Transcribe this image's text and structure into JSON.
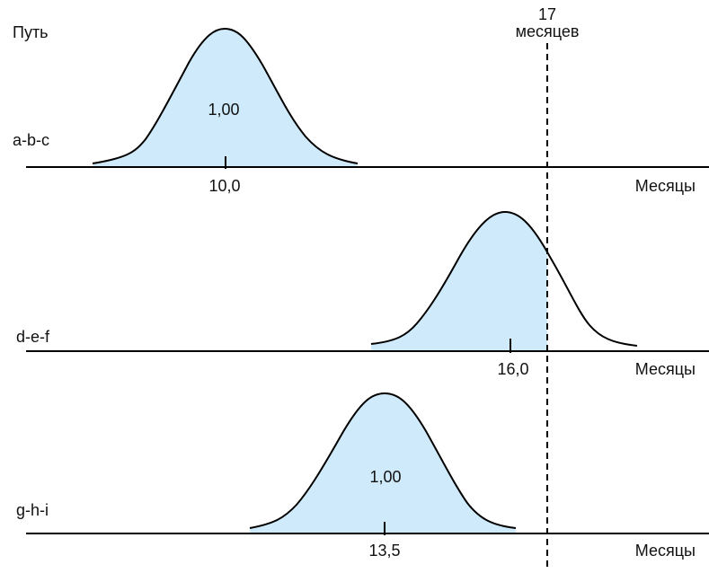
{
  "header": {
    "path_label": "Путь",
    "deadline_value": "17",
    "deadline_unit": "месяцев"
  },
  "rows": [
    {
      "path": "a-b-c",
      "mean_label": "10,0",
      "inner_label": "1,00",
      "axis_unit": "Месяцы"
    },
    {
      "path": "d-e-f",
      "mean_label": "16,0",
      "inner_label": "",
      "axis_unit": "Месяцы"
    },
    {
      "path": "g-h-i",
      "mean_label": "13,5",
      "inner_label": "1,00",
      "axis_unit": "Месяцы"
    }
  ],
  "colors": {
    "fill": "#cfeafb",
    "curve": "#000000",
    "deadline_line": "#000000"
  }
}
